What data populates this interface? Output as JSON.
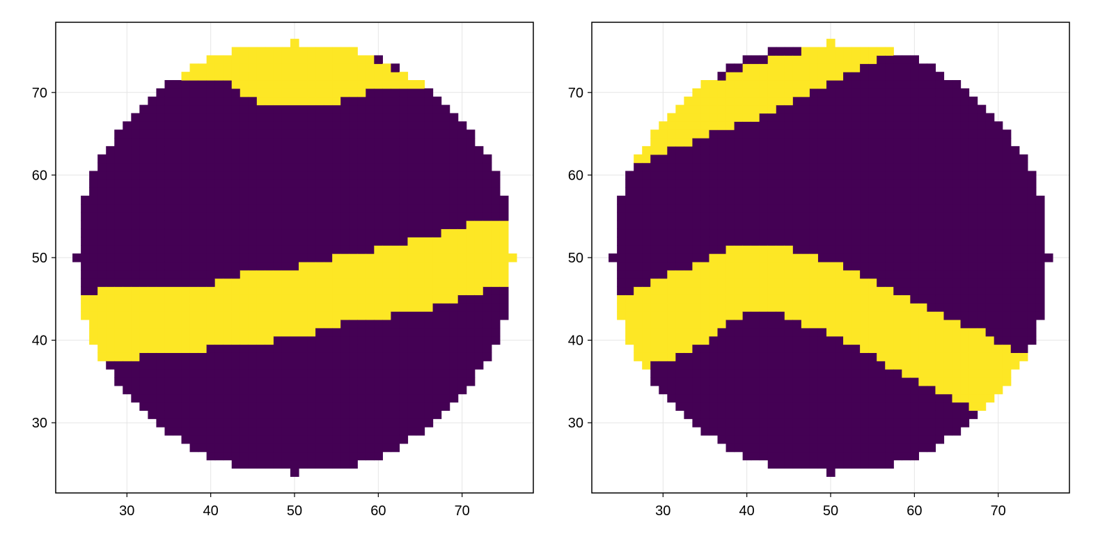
{
  "colors": {
    "background_class": "#440154",
    "highlight_class": "#fde725",
    "grid": "#e5e5e5",
    "frame": "#000000"
  },
  "chart_data": [
    {
      "type": "heatmap",
      "title": "",
      "xlabel": "",
      "ylabel": "",
      "xlim": [
        21.5,
        78.5
      ],
      "ylim": [
        21.5,
        78.5
      ],
      "xticks": [
        30,
        40,
        50,
        60,
        70
      ],
      "yticks": [
        30,
        40,
        50,
        60,
        70
      ],
      "grid": true,
      "legend": "none",
      "disk": {
        "center": [
          50,
          50
        ],
        "radius": 26,
        "cell": 1,
        "value_outside_band": 0
      },
      "bands": [
        {
          "value": 1,
          "lower": [
            [
              25,
              43
            ],
            [
              26,
              38
            ],
            [
              27,
              38
            ],
            [
              28,
              38
            ],
            [
              36,
              39
            ],
            [
              37,
              39
            ],
            [
              42,
              40
            ],
            [
              43,
              40
            ],
            [
              52,
              41
            ],
            [
              53,
              42
            ],
            [
              59,
              43
            ],
            [
              65,
              44
            ],
            [
              68,
              45
            ],
            [
              71,
              46
            ],
            [
              75,
              47
            ]
          ],
          "upper": [
            [
              25,
              45
            ],
            [
              28,
              46
            ],
            [
              40,
              46
            ],
            [
              42,
              47
            ],
            [
              46,
              48
            ],
            [
              49,
              48
            ],
            [
              52,
              49
            ],
            [
              58,
              50
            ],
            [
              61,
              51
            ],
            [
              67,
              52
            ],
            [
              69,
              53
            ],
            [
              73,
              54
            ],
            [
              75,
              54
            ]
          ]
        },
        {
          "value": 1,
          "lower": [
            [
              42,
              72
            ],
            [
              43,
              71
            ],
            [
              44,
              70
            ],
            [
              46,
              69
            ],
            [
              55,
              69
            ],
            [
              57,
              70
            ],
            [
              61,
              71
            ],
            [
              62,
              71
            ]
          ],
          "upper": [
            [
              42,
              74
            ],
            [
              43,
              75
            ],
            [
              48,
              75
            ],
            [
              49,
              76
            ],
            [
              51,
              76
            ],
            [
              52,
              75
            ],
            [
              56,
              75
            ],
            [
              58,
              74
            ],
            [
              60,
              73
            ],
            [
              63,
              72
            ],
            [
              64,
              72
            ]
          ]
        }
      ]
    },
    {
      "type": "heatmap",
      "title": "",
      "xlabel": "",
      "ylabel": "",
      "xlim": [
        21.5,
        78.5
      ],
      "ylim": [
        21.5,
        78.5
      ],
      "xticks": [
        30,
        40,
        50,
        60,
        70
      ],
      "yticks": [
        30,
        40,
        50,
        60,
        70
      ],
      "grid": true,
      "legend": "none",
      "disk": {
        "center": [
          50,
          50
        ],
        "radius": 26,
        "cell": 1,
        "value_outside_band": 0
      },
      "bands": [
        {
          "value": 1,
          "lower": [
            [
              24,
              42
            ],
            [
              26,
              38
            ],
            [
              28,
              37
            ],
            [
              30,
              38
            ],
            [
              33,
              39
            ],
            [
              35,
              40
            ],
            [
              37,
              42
            ],
            [
              39,
              43
            ],
            [
              41,
              44
            ],
            [
              43,
              44
            ],
            [
              45,
              43
            ],
            [
              48,
              42
            ],
            [
              50,
              41
            ],
            [
              53,
              40
            ],
            [
              56,
              38
            ],
            [
              59,
              36
            ],
            [
              61,
              35
            ],
            [
              63,
              34
            ],
            [
              65,
              33
            ],
            [
              67,
              32
            ],
            [
              68,
              32
            ]
          ],
          "upper": [
            [
              24,
              44
            ],
            [
              26,
              45
            ],
            [
              28,
              46
            ],
            [
              30,
              47
            ],
            [
              32,
              48
            ],
            [
              35,
              49
            ],
            [
              37,
              50
            ],
            [
              39,
              51
            ],
            [
              44,
              51
            ],
            [
              46,
              50
            ],
            [
              50,
              49
            ],
            [
              52,
              48
            ],
            [
              54,
              47
            ],
            [
              56,
              46
            ],
            [
              58,
              45
            ],
            [
              60,
              44
            ],
            [
              62,
              43
            ],
            [
              64,
              42
            ],
            [
              67,
              41
            ],
            [
              69,
              40
            ],
            [
              72,
              38
            ]
          ]
        },
        {
          "value": 1,
          "lower": [
            [
              28,
              62
            ],
            [
              30,
              63
            ],
            [
              32,
              64
            ],
            [
              35,
              65
            ],
            [
              37,
              66
            ],
            [
              40,
              67
            ],
            [
              43,
              68
            ],
            [
              45,
              69
            ],
            [
              47,
              70
            ],
            [
              49,
              71
            ],
            [
              51,
              72
            ],
            [
              53,
              73
            ],
            [
              55,
              74
            ],
            [
              57,
              75
            ]
          ],
          "upper": [
            [
              28,
              64
            ],
            [
              30,
              66
            ],
            [
              32,
              68
            ],
            [
              34,
              70
            ],
            [
              36,
              71
            ],
            [
              39,
              72
            ],
            [
              41,
              73
            ],
            [
              44,
              74
            ],
            [
              49,
              75
            ],
            [
              50,
              76
            ],
            [
              52,
              75
            ],
            [
              56,
              75
            ]
          ]
        }
      ]
    }
  ]
}
